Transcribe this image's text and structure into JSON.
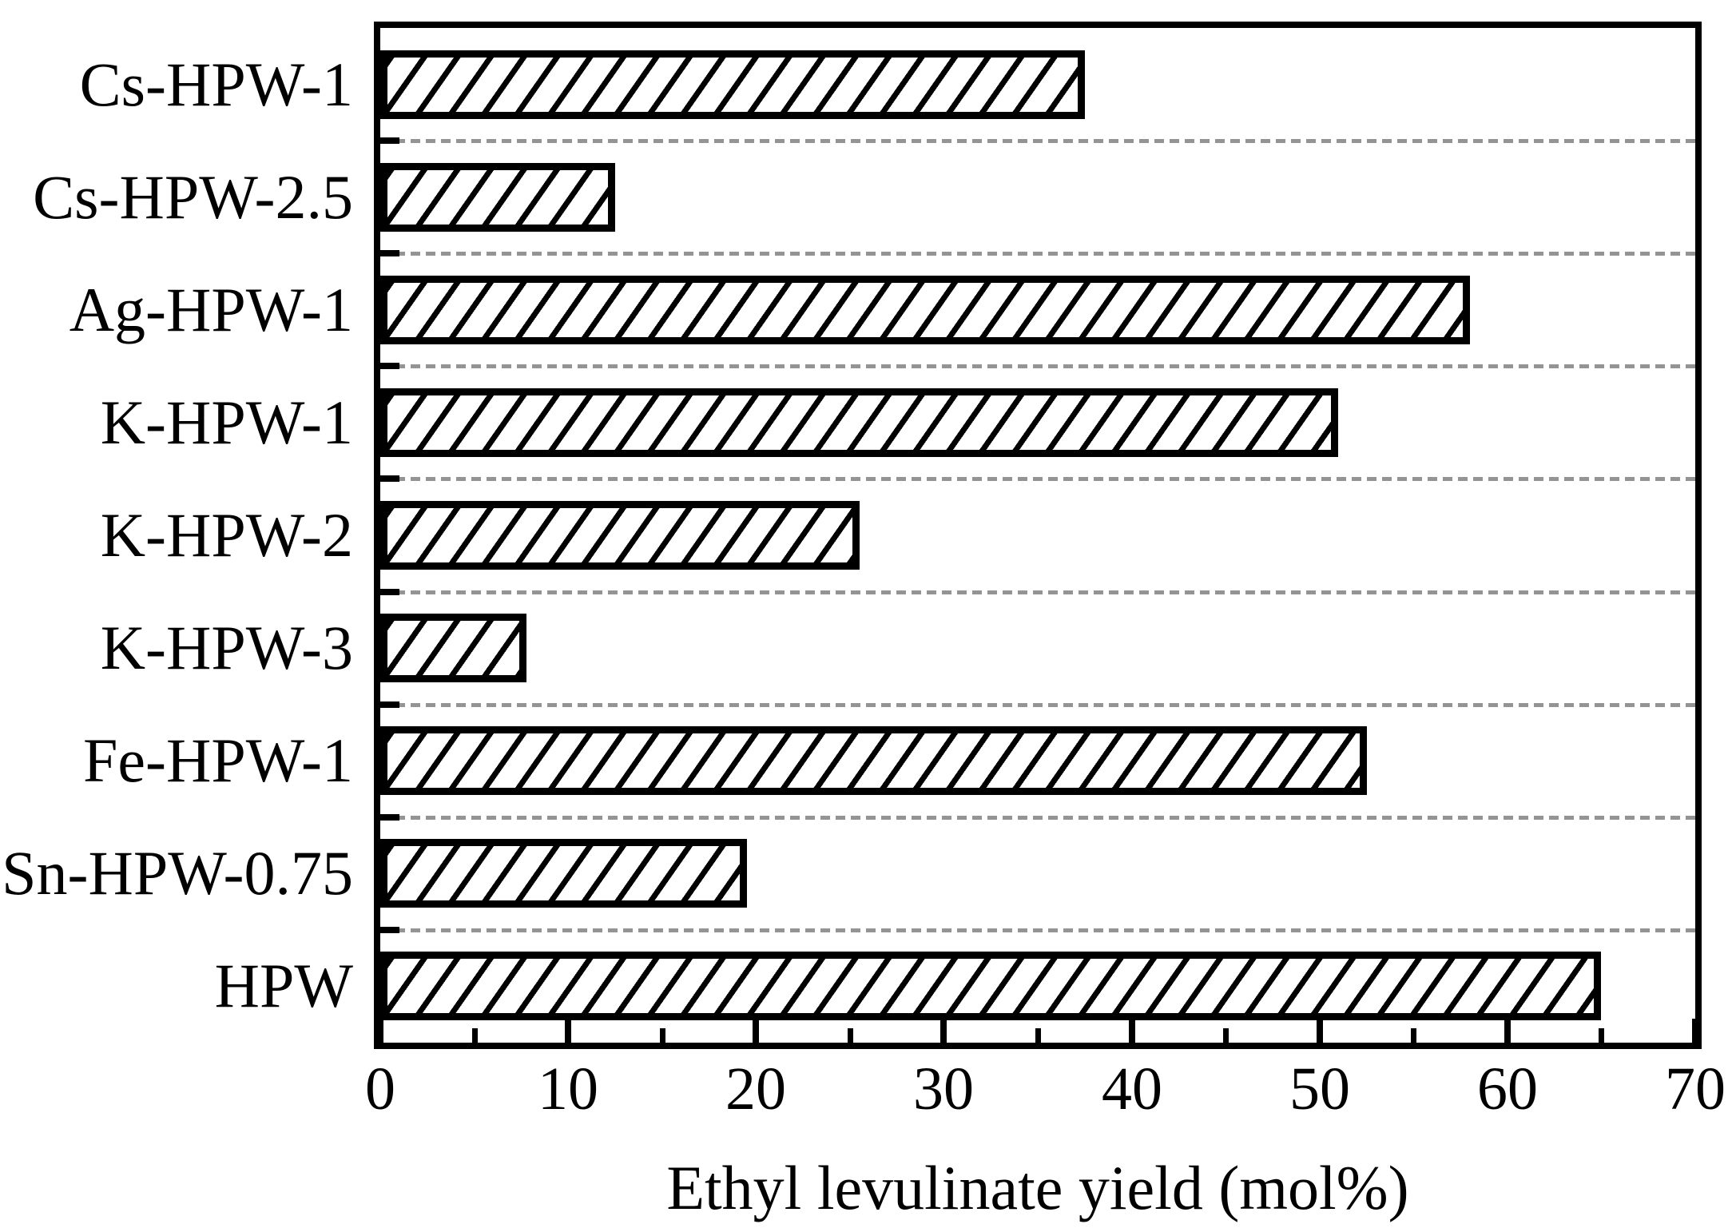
{
  "chart_data": {
    "type": "bar",
    "orientation": "horizontal",
    "title": "",
    "xlabel": "Ethyl levulinate yield (mol%)",
    "ylabel": "",
    "categories": [
      "Cs-HPW-1",
      "Cs-HPW-2.5",
      "Ag-HPW-1",
      "K-HPW-1",
      "K-HPW-2",
      "K-HPW-3",
      "Fe-HPW-1",
      "Sn-HPW-0.75",
      "HPW"
    ],
    "values": [
      37.5,
      12.5,
      58,
      51,
      25.5,
      7.8,
      52.5,
      19.5,
      65
    ],
    "xlim": [
      0,
      70
    ],
    "xticks": [
      0,
      10,
      20,
      30,
      40,
      50,
      60,
      70
    ],
    "minor_xticks": [
      5,
      15,
      25,
      35,
      45,
      55,
      65
    ],
    "grid": "dashed horizontal separators between category rows",
    "legend": "none",
    "bar_hatch": "forward-diagonal",
    "colors": {
      "background": "#ffffff",
      "bar_fill": "#ffffff",
      "bar_edge": "#000000",
      "hatch": "#000000",
      "axis": "#000000",
      "text": "#000000",
      "gridline": "#949494"
    }
  }
}
